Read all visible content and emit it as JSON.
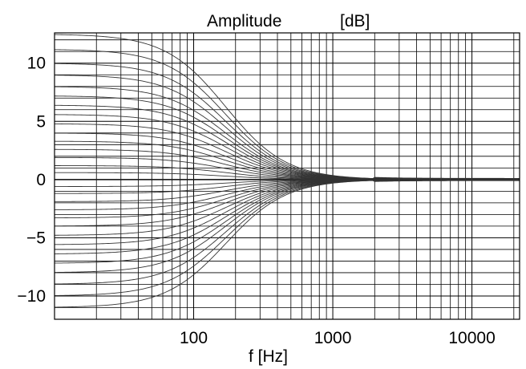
{
  "chart_data": {
    "type": "line",
    "title": "Amplitude",
    "title_unit": "[dB]",
    "xlabel": "f [Hz]",
    "ylabel": "",
    "x_scale": "log",
    "xlim": [
      10,
      22000
    ],
    "ylim": [
      -12,
      12.6
    ],
    "x_tick_labels": [
      "100",
      "1000",
      "10000"
    ],
    "x_tick_values": [
      100,
      1000,
      10000
    ],
    "y_tick_labels": [
      "10",
      "5",
      "0",
      "−5",
      "−10"
    ],
    "y_tick_values": [
      10,
      5,
      0,
      -5,
      -10
    ],
    "grid": true,
    "line_color": "#333333",
    "series_model": "low-shelf filter family; each curve approaches its gain at low f and 0 dB above ~2 kHz",
    "series": [
      {
        "gain_db": 12.5,
        "values": [
          [
            10,
            12.5
          ],
          [
            50,
            11.8
          ],
          [
            100,
            9.6
          ],
          [
            200,
            5.2
          ],
          [
            400,
            1.6
          ],
          [
            800,
            0.3
          ],
          [
            2000,
            0.0
          ],
          [
            22000,
            0.0
          ]
        ]
      },
      {
        "gain_db": 11.2
      },
      {
        "gain_db": 10.0
      },
      {
        "gain_db": 9.0
      },
      {
        "gain_db": 8.0
      },
      {
        "gain_db": 7.2
      },
      {
        "gain_db": 6.4
      },
      {
        "gain_db": 5.6
      },
      {
        "gain_db": 4.8
      },
      {
        "gain_db": 4.0
      },
      {
        "gain_db": 3.3
      },
      {
        "gain_db": 2.6
      },
      {
        "gain_db": 1.9
      },
      {
        "gain_db": 1.2
      },
      {
        "gain_db": 0.6
      },
      {
        "gain_db": 0.0
      },
      {
        "gain_db": -0.6
      },
      {
        "gain_db": -1.2
      },
      {
        "gain_db": -1.9
      },
      {
        "gain_db": -2.6
      },
      {
        "gain_db": -3.3
      },
      {
        "gain_db": -4.0
      },
      {
        "gain_db": -4.8
      },
      {
        "gain_db": -5.6
      },
      {
        "gain_db": -6.4
      },
      {
        "gain_db": -7.2
      },
      {
        "gain_db": -8.0
      },
      {
        "gain_db": -9.0
      },
      {
        "gain_db": -10.0
      },
      {
        "gain_db": -11.0
      }
    ]
  }
}
